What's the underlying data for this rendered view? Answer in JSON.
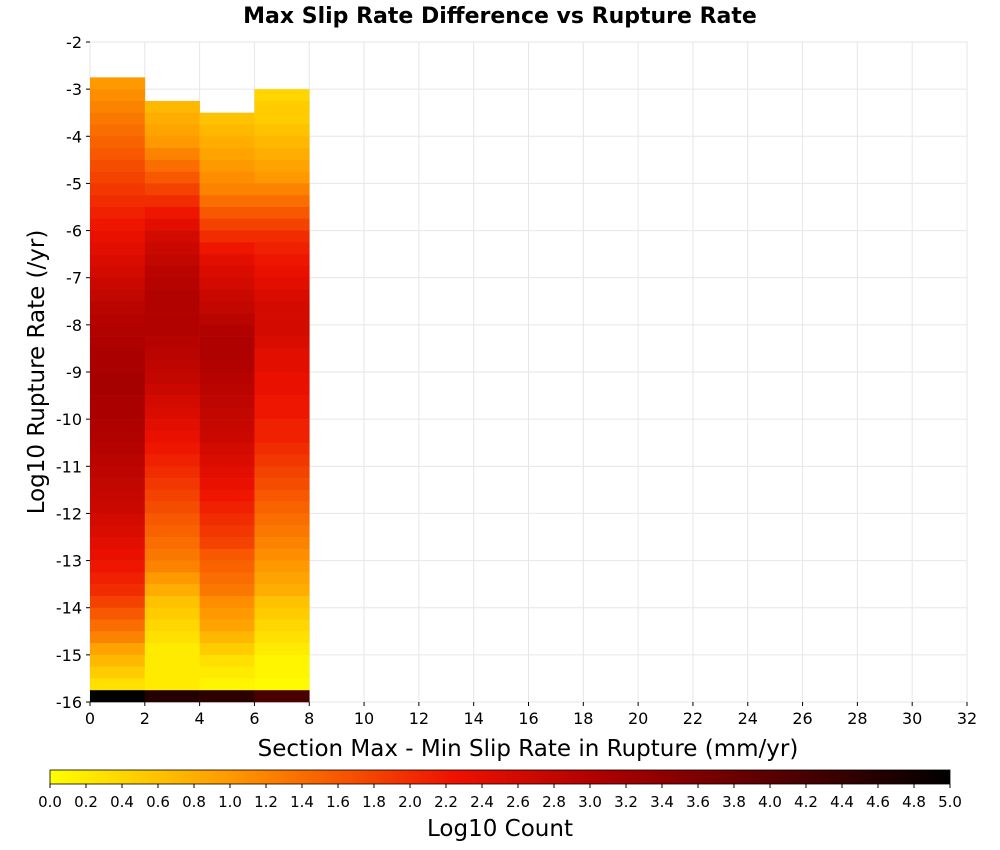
{
  "chart_data": {
    "type": "heatmap",
    "title": "Max Slip Rate Difference vs Rupture Rate",
    "xlabel": "Section Max - Min Slip Rate in Rupture (mm/yr)",
    "ylabel": "Log10 Rupture Rate (/yr)",
    "xlim": [
      0,
      32
    ],
    "ylim": [
      -16,
      -2
    ],
    "x_ticks": [
      "0",
      "2",
      "4",
      "6",
      "8",
      "10",
      "12",
      "14",
      "16",
      "18",
      "20",
      "22",
      "24",
      "26",
      "28",
      "30",
      "32"
    ],
    "y_ticks": [
      "-2",
      "-3",
      "-4",
      "-5",
      "-6",
      "-7",
      "-8",
      "-9",
      "-10",
      "-11",
      "-12",
      "-13",
      "-14",
      "-15",
      "-16"
    ],
    "x_bin_width": 2,
    "y_bin_height": 0.25,
    "grid": true,
    "colorbar": {
      "label": "Log10 Count",
      "min": 0.0,
      "max": 5.0,
      "ticks": [
        "0.0",
        "0.2",
        "0.4",
        "0.6",
        "0.8",
        "1.0",
        "1.2",
        "1.4",
        "1.6",
        "1.8",
        "2.0",
        "2.2",
        "2.4",
        "2.6",
        "2.8",
        "3.0",
        "3.2",
        "3.4",
        "3.6",
        "3.8",
        "4.0",
        "4.2",
        "4.4",
        "4.6",
        "4.8",
        "5.0"
      ],
      "stops": [
        "#ffff00",
        "#ff9900",
        "#ee1100",
        "#aa0000",
        "#000000"
      ],
      "stop_positions": [
        0.0,
        0.2,
        0.45,
        0.62,
        1.0
      ]
    },
    "columns": [
      {
        "x_start": 0,
        "bins": [
          "-16:-3:0.9|1.0|1.1|1.2|1.3|1.4|1.5|1.6|1.7|1.8|1.9|2.0|2.1|2.2|2.3|2.4|2.5|2.6|2.7|2.8|2.9|2.95|3.0|3.05|3.1|3.1|3.15|3.15|3.1|3.1|3.05|3.0|2.95|2.9|2.85|2.8|2.75|2.7|2.6|2.5|2.4|2.3|2.2|2.1|2.0|1.8|1.6|1.4|1.2|0.9|0.7|0.5|0.3|5.0"
        ]
      },
      {
        "x_start": 2,
        "bins": [
          "-16:-3.5:0.5|0.6|0.7|0.8|0.9|1.0|1.2|1.4|1.6|1.8|2.0|2.2|2.4|2.6|2.7|2.8|2.9|2.95|3.0|3.0|3.0|3.0|2.95|2.9|2.85|2.8|2.7|2.6|2.5|2.4|2.3|2.2|2.1|2.0|1.9|1.8|1.7|1.6|1.5|1.4|1.3|1.2|1.0|0.8|0.6|0.5|0.4|0.3|0.2|0.2|0.2|0.2|4.6"
        ]
      },
      {
        "x_start": 4,
        "bins": [
          "-16:-3.75:0.6|0.7|0.8|0.9|1.0|1.1|1.2|1.4|1.6|1.8|2.0|2.2|2.4|2.5|2.6|2.7|2.8|2.9|3.0|3.05|3.05|3.0|2.95|2.9|2.85|2.8|2.75|2.7|2.6|2.5|2.4|2.3|2.2|2.1|2.0|1.9|1.8|1.6|1.5|1.4|1.3|1.1|1.0|0.9|0.7|0.5|0.3|0.2|0.1|4.5"
        ]
      },
      {
        "x_start": 6,
        "bins": [
          "-16:-3.25:0.4|0.5|0.5|0.6|0.7|0.8|0.9|1.0|1.2|1.4|1.6|1.8|2.0|2.1|2.2|2.3|2.4|2.5|2.6|2.6|2.6|2.5|2.4|2.4|2.3|2.3|2.2|2.2|2.1|2.1|2.0|1.9|1.8|1.7|1.6|1.5|1.4|1.3|1.2|1.1|1.0|0.9|0.8|0.6|0.5|0.4|0.3|0.2|0.1|0.1|0.05|4.2"
        ]
      }
    ]
  }
}
